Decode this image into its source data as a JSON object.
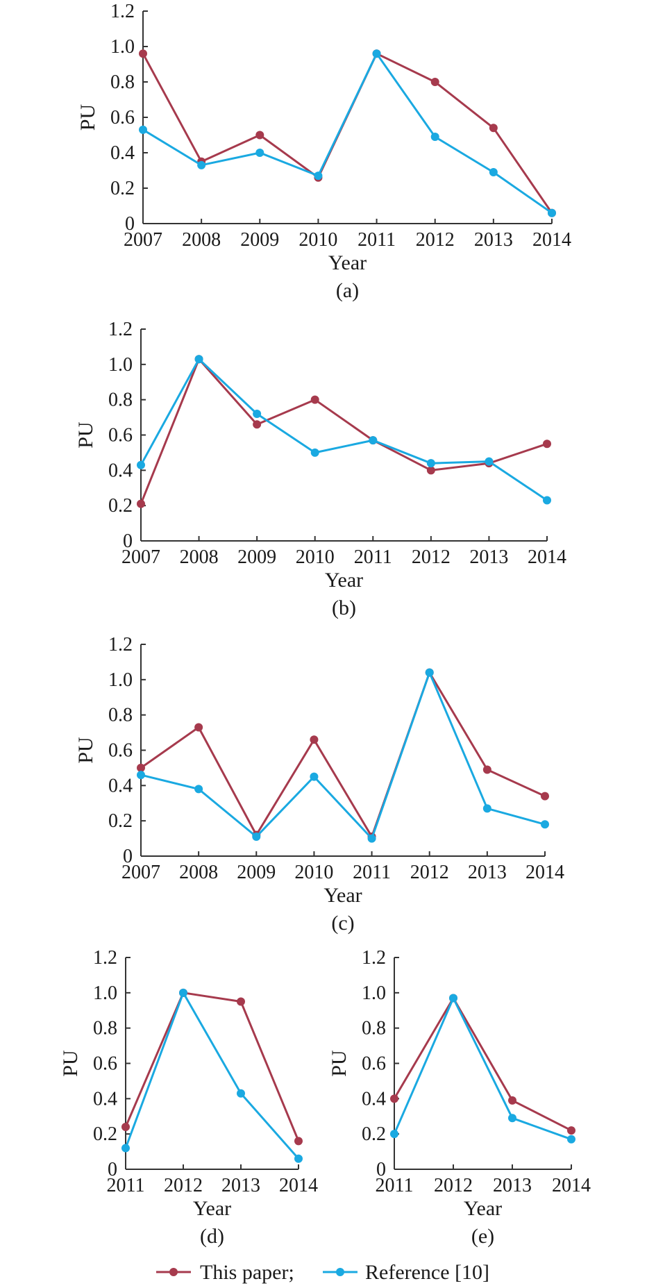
{
  "legend": [
    {
      "label": "This paper;",
      "color": "#a63a4d"
    },
    {
      "label": "Reference [10]",
      "color": "#1aa9e1"
    }
  ],
  "chart_data": [
    {
      "type": "line",
      "caption": "(a)",
      "xlabel": "Year",
      "ylabel": "PU",
      "ylim": [
        0,
        1.2
      ],
      "yticks": [
        "0",
        "0.2",
        "0.4",
        "0.6",
        "0.8",
        "1.0",
        "1.2"
      ],
      "x": [
        "2007",
        "2008",
        "2009",
        "2010",
        "2011",
        "2012",
        "2013",
        "2014"
      ],
      "series": [
        {
          "name": "This paper;",
          "color": "#a63a4d",
          "values": [
            0.96,
            0.35,
            0.5,
            0.26,
            0.96,
            0.8,
            0.54,
            0.06
          ]
        },
        {
          "name": "Reference [10]",
          "color": "#1aa9e1",
          "values": [
            0.53,
            0.33,
            0.4,
            0.27,
            0.96,
            0.49,
            0.29,
            0.06
          ]
        }
      ]
    },
    {
      "type": "line",
      "caption": "(b)",
      "xlabel": "Year",
      "ylabel": "PU",
      "ylim": [
        0,
        1.2
      ],
      "yticks": [
        "0",
        "0.2",
        "0.4",
        "0.6",
        "0.8",
        "1.0",
        "1.2"
      ],
      "x": [
        "2007",
        "2008",
        "2009",
        "2010",
        "2011",
        "2012",
        "2013",
        "2014"
      ],
      "series": [
        {
          "name": "This paper;",
          "color": "#a63a4d",
          "values": [
            0.21,
            1.03,
            0.66,
            0.8,
            0.57,
            0.4,
            0.44,
            0.55
          ]
        },
        {
          "name": "Reference [10]",
          "color": "#1aa9e1",
          "values": [
            0.43,
            1.03,
            0.72,
            0.5,
            0.57,
            0.44,
            0.45,
            0.23
          ]
        }
      ]
    },
    {
      "type": "line",
      "caption": "(c)",
      "xlabel": "Year",
      "ylabel": "PU",
      "ylim": [
        0,
        1.2
      ],
      "yticks": [
        "0",
        "0.2",
        "0.4",
        "0.6",
        "0.8",
        "1.0",
        "1.2"
      ],
      "x": [
        "2007",
        "2008",
        "2009",
        "2010",
        "2011",
        "2012",
        "2013",
        "2014"
      ],
      "series": [
        {
          "name": "This paper;",
          "color": "#a63a4d",
          "values": [
            0.5,
            0.73,
            0.12,
            0.66,
            0.11,
            1.04,
            0.49,
            0.34
          ]
        },
        {
          "name": "Reference [10]",
          "color": "#1aa9e1",
          "values": [
            0.46,
            0.38,
            0.11,
            0.45,
            0.1,
            1.04,
            0.27,
            0.18
          ]
        }
      ]
    },
    {
      "type": "line",
      "caption": "(d)",
      "xlabel": "Year",
      "ylabel": "PU",
      "ylim": [
        0,
        1.2
      ],
      "yticks": [
        "0",
        "0.2",
        "0.4",
        "0.6",
        "0.8",
        "1.0",
        "1.2"
      ],
      "x": [
        "2011",
        "2012",
        "2013",
        "2014"
      ],
      "series": [
        {
          "name": "This paper;",
          "color": "#a63a4d",
          "values": [
            0.24,
            1.0,
            0.95,
            0.16
          ]
        },
        {
          "name": "Reference [10]",
          "color": "#1aa9e1",
          "values": [
            0.12,
            1.0,
            0.43,
            0.06
          ]
        }
      ]
    },
    {
      "type": "line",
      "caption": "(e)",
      "xlabel": "Year",
      "ylabel": "PU",
      "ylim": [
        0,
        1.2
      ],
      "yticks": [
        "0",
        "0.2",
        "0.4",
        "0.6",
        "0.8",
        "1.0",
        "1.2"
      ],
      "x": [
        "2011",
        "2012",
        "2013",
        "2014"
      ],
      "series": [
        {
          "name": "This paper;",
          "color": "#a63a4d",
          "values": [
            0.4,
            0.97,
            0.39,
            0.22
          ]
        },
        {
          "name": "Reference [10]",
          "color": "#1aa9e1",
          "values": [
            0.2,
            0.97,
            0.29,
            0.17
          ]
        }
      ]
    }
  ]
}
